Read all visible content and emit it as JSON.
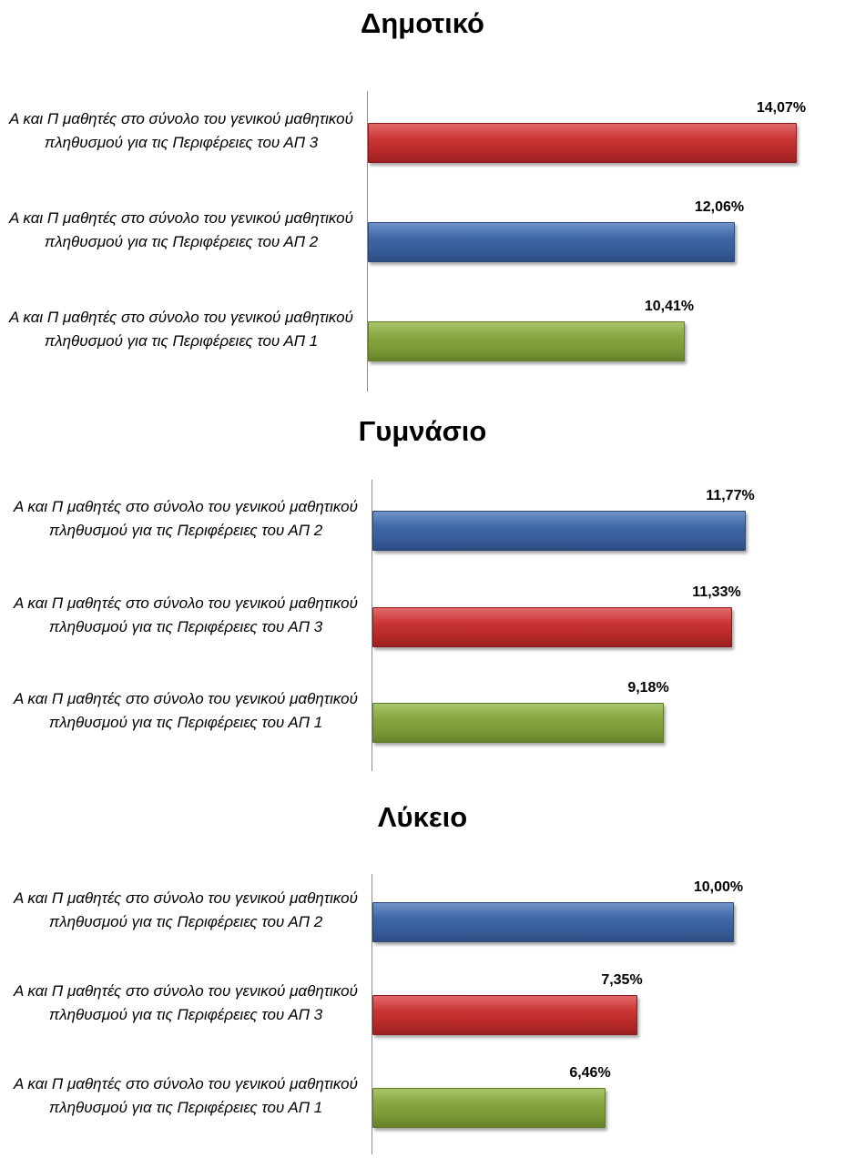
{
  "chart_data": [
    {
      "type": "bar",
      "orientation": "horizontal",
      "title": "Δημοτικό",
      "grid": false,
      "legend": "none",
      "xlim": [
        0,
        14.5
      ],
      "bars": [
        {
          "label": "Α και Π μαθητές  στο σύνολο του γενικού μαθητικού πληθυσμού για τις Περιφέρειες του ΑΠ 3",
          "value": 14.07,
          "value_label": "14,07%",
          "color": "#c0392b"
        },
        {
          "label": "Α και Π μαθητές  στο σύνολο του γενικού μαθητικού πληθυσμού για τις Περιφέρειες του ΑΠ 2",
          "value": 12.06,
          "value_label": "12,06%",
          "color": "#3d64a3"
        },
        {
          "label": "Α και Π μαθητές  στο σύνολο του γενικού μαθητικού πληθυσμού για τις Περιφέρειες του ΑΠ 1",
          "value": 10.41,
          "value_label": "10,41%",
          "color": "#80a03b"
        }
      ]
    },
    {
      "type": "bar",
      "orientation": "horizontal",
      "title": "Γυμνάσιο",
      "grid": false,
      "legend": "none",
      "xlim": [
        0,
        13.2
      ],
      "bars": [
        {
          "label": "Α και Π μαθητές  στο σύνολο του γενικού μαθητικού πληθυσμού για τις Περιφέρειες του ΑΠ 2",
          "value": 11.77,
          "value_label": "11,77%",
          "color": "#3d64a3"
        },
        {
          "label": "Α και Π μαθητές  στο σύνολο του γενικού μαθητικού πληθυσμού για τις Περιφέρειες του ΑΠ 3",
          "value": 11.33,
          "value_label": "11,33%",
          "color": "#c0392b"
        },
        {
          "label": "Α και Π μαθητές  στο σύνολο του γενικού μαθητικού πληθυσμού για τις Περιφέρειες του ΑΠ 1",
          "value": 9.18,
          "value_label": "9,18%",
          "color": "#80a03b"
        }
      ]
    },
    {
      "type": "bar",
      "orientation": "horizontal",
      "title": "Λύκειο",
      "grid": false,
      "legend": "none",
      "xlim": [
        0,
        11.6
      ],
      "bars": [
        {
          "label": "Α και Π μαθητές  στο σύνολο του γενικού μαθητικού πληθυσμού για τις Περιφέρειες του ΑΠ 2",
          "value": 10.0,
          "value_label": "10,00%",
          "color": "#3d64a3"
        },
        {
          "label": "Α και Π μαθητές  στο σύνολο του γενικού μαθητικού πληθυσμού για τις Περιφέρειες του ΑΠ 3",
          "value": 7.35,
          "value_label": "7,35%",
          "color": "#c0392b"
        },
        {
          "label": "Α και Π μαθητές  στο σύνολο του γενικού μαθητικού πληθυσμού για τις Περιφέρειες του ΑΠ 1",
          "value": 6.46,
          "value_label": "6,46%",
          "color": "#80a03b"
        }
      ]
    }
  ]
}
